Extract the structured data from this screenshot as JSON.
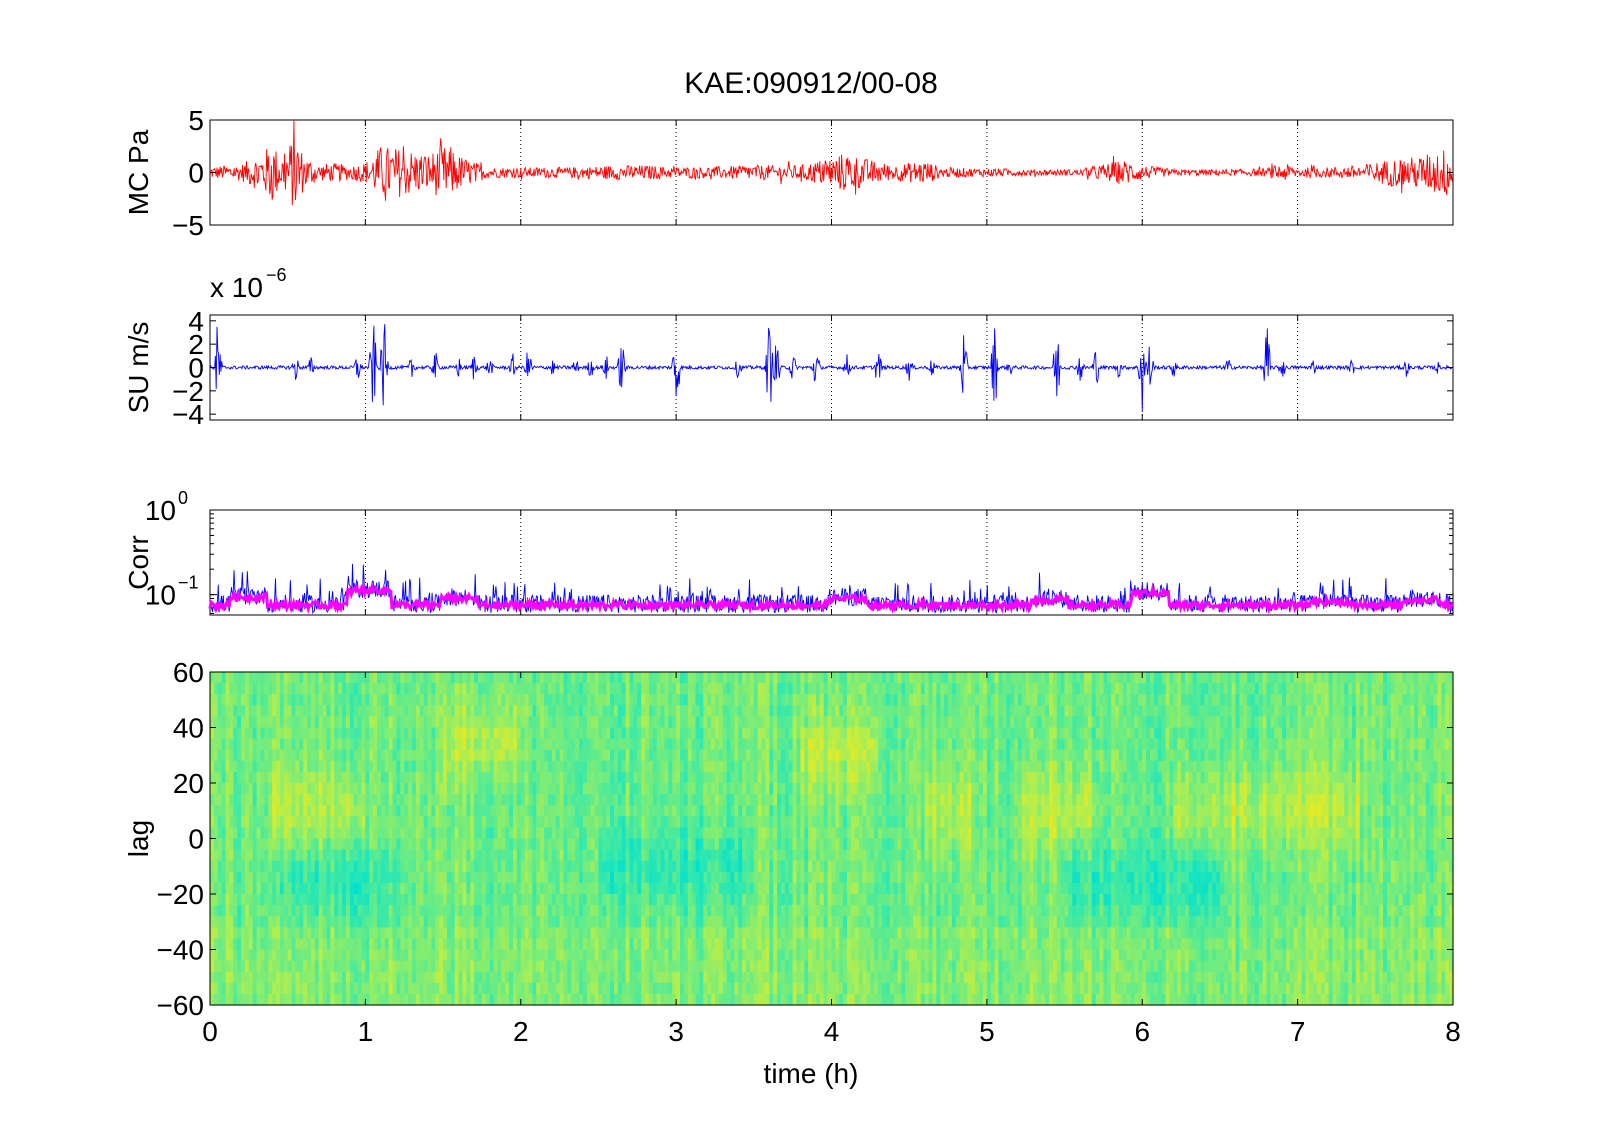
{
  "figure": {
    "title": "KAE:090912/00-08",
    "xlabel": "time (h)",
    "xticks": [
      "0",
      "1",
      "2",
      "3",
      "4",
      "5",
      "6",
      "7",
      "8"
    ]
  },
  "chart_data": [
    {
      "id": "mc",
      "type": "line",
      "ylabel": "MC Pa",
      "xlim": [
        0,
        8
      ],
      "ylim": [
        -5,
        5
      ],
      "yticks": [
        5,
        0,
        -5
      ],
      "ytick_labels": [
        "5",
        "0",
        "−5"
      ],
      "color": "#ff0000",
      "grid": "vertical dotted",
      "envelope": [
        [
          0.0,
          0.6
        ],
        [
          0.2,
          0.8
        ],
        [
          0.35,
          2.0
        ],
        [
          0.4,
          3.2
        ],
        [
          0.45,
          1.5
        ],
        [
          0.5,
          2.5
        ],
        [
          0.55,
          4.0
        ],
        [
          0.6,
          1.8
        ],
        [
          0.7,
          0.8
        ],
        [
          0.8,
          0.9
        ],
        [
          0.9,
          0.7
        ],
        [
          1.0,
          1.0
        ],
        [
          1.1,
          2.6
        ],
        [
          1.2,
          2.4
        ],
        [
          1.3,
          2.2
        ],
        [
          1.4,
          1.8
        ],
        [
          1.5,
          2.5
        ],
        [
          1.55,
          2.5
        ],
        [
          1.6,
          1.7
        ],
        [
          1.7,
          1.0
        ],
        [
          1.8,
          0.5
        ],
        [
          2.0,
          0.5
        ],
        [
          2.3,
          0.5
        ],
        [
          2.6,
          0.7
        ],
        [
          2.8,
          0.7
        ],
        [
          3.0,
          0.5
        ],
        [
          3.3,
          0.6
        ],
        [
          3.5,
          0.7
        ],
        [
          3.8,
          0.7
        ],
        [
          4.0,
          1.5
        ],
        [
          4.1,
          2.0
        ],
        [
          4.2,
          1.4
        ],
        [
          4.4,
          0.7
        ],
        [
          4.6,
          1.2
        ],
        [
          4.7,
          0.5
        ],
        [
          5.0,
          0.4
        ],
        [
          5.3,
          0.3
        ],
        [
          5.6,
          0.3
        ],
        [
          5.8,
          1.0
        ],
        [
          5.9,
          1.2
        ],
        [
          6.0,
          0.7
        ],
        [
          6.2,
          0.3
        ],
        [
          6.6,
          0.3
        ],
        [
          6.8,
          0.4
        ],
        [
          6.9,
          0.9
        ],
        [
          7.0,
          0.5
        ],
        [
          7.2,
          0.5
        ],
        [
          7.4,
          0.7
        ],
        [
          7.6,
          1.3
        ],
        [
          7.8,
          1.6
        ],
        [
          7.9,
          2.2
        ],
        [
          8.0,
          2.5
        ]
      ]
    },
    {
      "id": "su",
      "type": "line",
      "ylabel": "SU m/s",
      "scale_label": "x 10",
      "scale_exponent": "−6",
      "xlim": [
        0,
        8
      ],
      "ylim": [
        -4.5,
        4.5
      ],
      "yticks": [
        4,
        2,
        0,
        -2,
        -4
      ],
      "ytick_labels": [
        "4",
        "2",
        "0",
        "−2",
        "−4"
      ],
      "color": "#0000ff",
      "grid": "vertical dotted",
      "baseline_amp": 0.15,
      "bursts": [
        [
          0.05,
          4.5
        ],
        [
          0.55,
          1.4
        ],
        [
          0.65,
          1.0
        ],
        [
          0.95,
          1.5
        ],
        [
          1.05,
          4.5
        ],
        [
          1.12,
          4.5
        ],
        [
          1.3,
          1.2
        ],
        [
          1.45,
          1.5
        ],
        [
          1.6,
          1.0
        ],
        [
          1.7,
          1.4
        ],
        [
          1.8,
          1.0
        ],
        [
          1.95,
          1.2
        ],
        [
          2.05,
          2.0
        ],
        [
          2.2,
          1.0
        ],
        [
          2.35,
          1.0
        ],
        [
          2.45,
          1.0
        ],
        [
          2.55,
          1.2
        ],
        [
          2.65,
          2.8
        ],
        [
          3.0,
          4.5
        ],
        [
          3.4,
          1.0
        ],
        [
          3.6,
          4.5
        ],
        [
          3.65,
          3.0
        ],
        [
          3.75,
          1.5
        ],
        [
          3.9,
          2.2
        ],
        [
          4.1,
          1.2
        ],
        [
          4.3,
          1.8
        ],
        [
          4.5,
          1.2
        ],
        [
          4.65,
          1.0
        ],
        [
          4.85,
          3.5
        ],
        [
          5.05,
          4.0
        ],
        [
          5.15,
          0.8
        ],
        [
          5.45,
          4.0
        ],
        [
          5.6,
          1.5
        ],
        [
          5.7,
          2.0
        ],
        [
          5.85,
          1.0
        ],
        [
          6.0,
          4.5
        ],
        [
          6.05,
          2.5
        ],
        [
          6.2,
          1.0
        ],
        [
          6.55,
          1.0
        ],
        [
          6.8,
          4.5
        ],
        [
          6.9,
          1.2
        ],
        [
          7.1,
          0.8
        ],
        [
          7.35,
          0.8
        ],
        [
          7.7,
          0.8
        ],
        [
          7.9,
          0.6
        ]
      ]
    },
    {
      "id": "corr",
      "type": "line",
      "ylabel": "Corr",
      "yscale": "log",
      "xlim": [
        0,
        8
      ],
      "ylim": [
        0.0575,
        1
      ],
      "ytick_labels": [
        {
          "base": "10",
          "exp": "0",
          "value": 1
        },
        {
          "base": "10",
          "exp": "−1",
          "value": 0.1
        }
      ],
      "grid": "vertical dotted",
      "series": [
        {
          "color": "#0000ff",
          "level": 0.078,
          "spread": 1.28,
          "peak": 0.18
        },
        {
          "color": "#ff00ff",
          "level": 0.075,
          "spread": 1.1,
          "peak": 0.13
        }
      ],
      "bumps": [
        [
          0.25,
          1.25
        ],
        [
          1.0,
          1.45
        ],
        [
          1.05,
          1.5
        ],
        [
          1.6,
          1.2
        ],
        [
          4.1,
          1.2
        ],
        [
          5.4,
          1.15
        ],
        [
          6.05,
          1.4
        ],
        [
          7.2,
          1.1
        ],
        [
          7.8,
          1.15
        ]
      ]
    },
    {
      "id": "lag",
      "type": "heatmap",
      "ylabel": "lag",
      "xlim": [
        0,
        8
      ],
      "ylim": [
        -60,
        60
      ],
      "yticks": [
        60,
        40,
        20,
        0,
        -20,
        -40,
        -60
      ],
      "ytick_labels": [
        "60",
        "40",
        "20",
        "0",
        "−20",
        "−40",
        "−60"
      ],
      "colormap": [
        "#00e0d0",
        "#30e8b0",
        "#70ec80",
        "#b0ee50",
        "#e8ea20",
        "#ff9a00"
      ],
      "positive_lag_zones": [
        [
          0.4,
          1.0,
          10
        ],
        [
          1.5,
          2.0,
          35
        ],
        [
          3.8,
          4.3,
          30
        ],
        [
          4.6,
          4.9,
          10
        ],
        [
          5.2,
          5.7,
          10
        ],
        [
          6.2,
          7.4,
          10
        ]
      ],
      "negative_lag_zones": [
        [
          0.4,
          1.2,
          -15
        ],
        [
          2.5,
          3.5,
          -10
        ],
        [
          5.5,
          6.5,
          -15
        ]
      ]
    }
  ]
}
